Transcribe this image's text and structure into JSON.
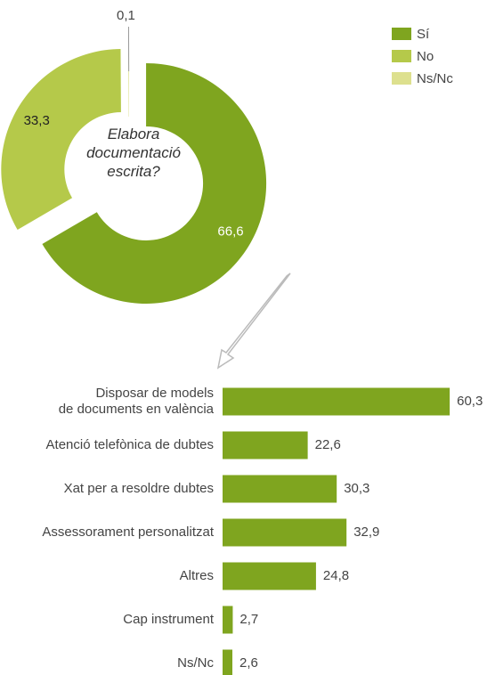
{
  "chart_data": [
    {
      "type": "donut",
      "title": "Elabora documentació escrita?",
      "series": [
        {
          "name": "Sí",
          "color": "#7fa51f",
          "values": [
            66.6
          ],
          "value_labels": [
            "66,6"
          ]
        },
        {
          "name": "No",
          "color": "#b5c94a",
          "values": [
            33.3
          ],
          "value_labels": [
            "33,3"
          ]
        },
        {
          "name": "Ns/Nc",
          "color": "#dde08e",
          "values": [
            0.1
          ],
          "value_labels": [
            "0,1"
          ]
        }
      ],
      "legend": "top-right"
    },
    {
      "type": "hbar",
      "categories": [
        "Disposar de models\nde documents en valència",
        "Atenció telefònica de dubtes",
        "Xat per a resoldre dubtes",
        "Assessorament personalitzat",
        "Altres",
        "Cap instrument",
        "Ns/Nc"
      ],
      "values": [
        60.3,
        22.6,
        30.3,
        32.9,
        24.8,
        2.7,
        2.6
      ],
      "value_labels": [
        "60,3",
        "22,6",
        "30,3",
        "32,9",
        "24,8",
        "2,7",
        "2,6"
      ],
      "color": "#7fa51f",
      "xlim": [
        0,
        65
      ]
    }
  ]
}
